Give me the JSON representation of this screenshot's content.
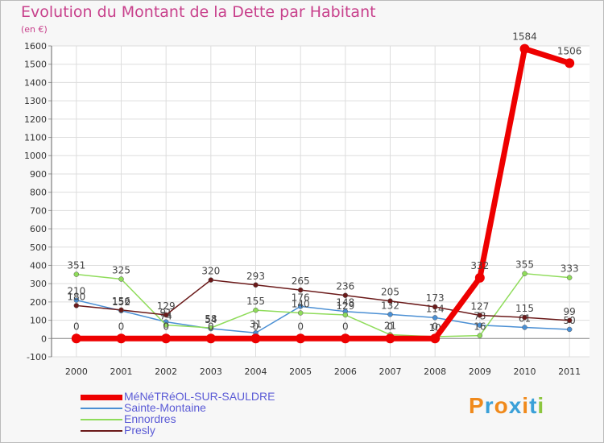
{
  "header": {
    "title": "Evolution du Montant de la Dette par Habitant",
    "unit": "(en €)"
  },
  "logo": {
    "letters": [
      "P",
      "r",
      "o",
      "x",
      "i",
      "t",
      "i"
    ],
    "colors": [
      "#f08a1c",
      "#3aa0d8",
      "#f08a1c",
      "#3aa0d8",
      "#f08a1c",
      "#3aa0d8",
      "#8cc63f"
    ]
  },
  "chart_data": {
    "type": "line",
    "title": "Evolution du Montant de la Dette par Habitant",
    "ylabel": "(en €)",
    "xlabel": "",
    "ylim": [
      -100,
      1600
    ],
    "yticks": [
      -100,
      0,
      100,
      200,
      300,
      400,
      500,
      600,
      700,
      800,
      900,
      1000,
      1100,
      1200,
      1300,
      1400,
      1500,
      1600
    ],
    "categories": [
      "2000",
      "2001",
      "2002",
      "2003",
      "2004",
      "2005",
      "2006",
      "2007",
      "2008",
      "2009",
      "2010",
      "2011"
    ],
    "grid": true,
    "series": [
      {
        "name": "Sainte-Montaine",
        "color": "#4a8fd4",
        "values": [
          210,
          152,
          91,
          54,
          31,
          176,
          148,
          132,
          114,
          73,
          61,
          50
        ],
        "labels": [
          "210",
          "152",
          "91",
          "54",
          "31",
          "176",
          "148",
          "132",
          "114",
          "73",
          "61",
          "50"
        ]
      },
      {
        "name": "Ennordres",
        "color": "#8fdc5a",
        "values": [
          351,
          325,
          74,
          58,
          155,
          140,
          129,
          21,
          10,
          16,
          355,
          333
        ],
        "labels": [
          "351",
          "325",
          "74",
          "58",
          "155",
          "140",
          "129",
          "21",
          "10",
          "16",
          "355",
          "333"
        ]
      },
      {
        "name": "Presly",
        "color": "#6b1a1a",
        "values": [
          180,
          156,
          129,
          320,
          293,
          265,
          236,
          205,
          173,
          127,
          115,
          99
        ],
        "labels": [
          "180",
          "156",
          "129",
          "320",
          "293",
          "265",
          "236",
          "205",
          "173",
          "127",
          "115",
          "99"
        ]
      },
      {
        "name": "MéNéTRéOL-SUR-SAULDRE",
        "color": "#ee0000",
        "values": [
          0,
          0,
          0,
          0,
          0,
          0,
          0,
          0,
          0,
          332,
          1584,
          1506
        ],
        "labels": [
          "0",
          "0",
          "0",
          "0",
          "0",
          "0",
          "0",
          "0",
          "0",
          "332",
          "1584",
          "1506"
        ]
      }
    ],
    "legend": [
      "MéNéTRéOL-SUR-SAULDRE",
      "Sainte-Montaine",
      "Ennordres",
      "Presly"
    ],
    "legend_placement": "bottom-left"
  }
}
